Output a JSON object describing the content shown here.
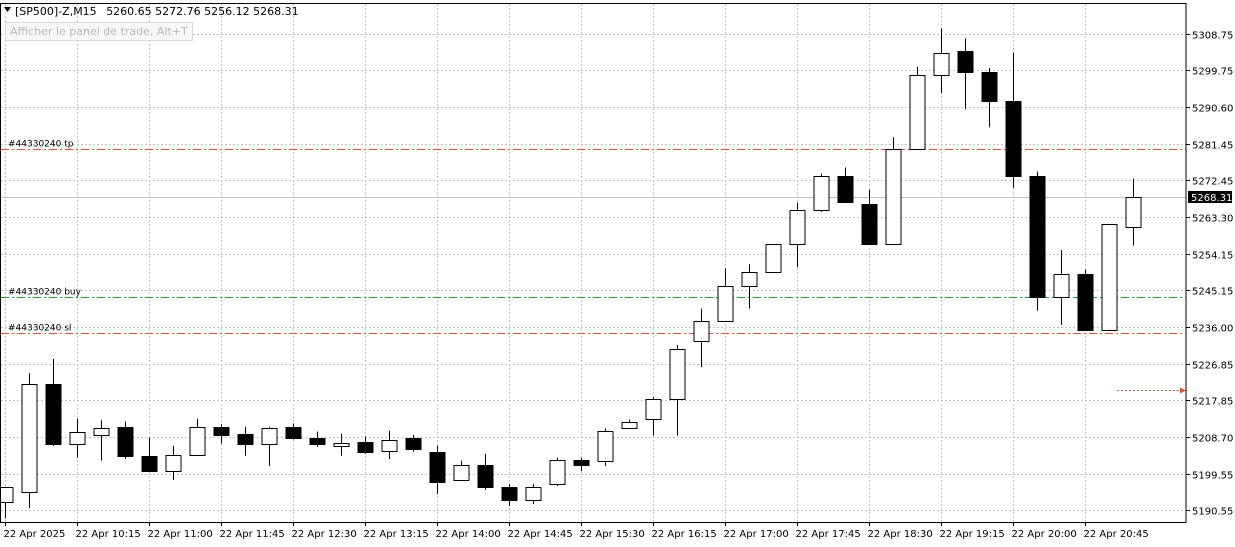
{
  "header": {
    "symbol": "[SP500]-Z,M15",
    "ohlc": "5260.65 5272.76 5256.12 5268.31",
    "trade_panel_label": "Afficher le panel de trade, Alt+T"
  },
  "chart_data": {
    "type": "candlestick",
    "ylim": [
      5186.0,
      5316.0
    ],
    "y_ticks": [
      "5308.75",
      "5299.75",
      "5290.60",
      "5281.45",
      "5272.45",
      "5263.30",
      "5254.15",
      "5245.15",
      "5236.00",
      "5226.85",
      "5217.85",
      "5208.70",
      "5199.55",
      "5190.55"
    ],
    "x_ticks": [
      "22 Apr 2025",
      "22 Apr 10:15",
      "22 Apr 11:00",
      "22 Apr 11:45",
      "22 Apr 12:30",
      "22 Apr 13:15",
      "22 Apr 14:00",
      "22 Apr 14:45",
      "22 Apr 15:30",
      "22 Apr 16:15",
      "22 Apr 17:00",
      "22 Apr 17:45",
      "22 Apr 18:30",
      "22 Apr 19:15",
      "22 Apr 20:00",
      "22 Apr 20:45"
    ],
    "current_price": "5268.31",
    "current_price_value": 5268.31,
    "candles": [
      {
        "o": 5192.5,
        "h": 5196.0,
        "l": 5188.5,
        "c": 5196.2
      },
      {
        "o": 5195.0,
        "h": 5224.5,
        "l": 5191.0,
        "c": 5221.8
      },
      {
        "o": 5221.8,
        "h": 5228.0,
        "l": 5206.5,
        "c": 5207.0
      },
      {
        "o": 5206.8,
        "h": 5213.2,
        "l": 5203.5,
        "c": 5209.8
      },
      {
        "o": 5209.2,
        "h": 5212.8,
        "l": 5202.8,
        "c": 5210.8
      },
      {
        "o": 5211.2,
        "h": 5212.5,
        "l": 5203.2,
        "c": 5204.0
      },
      {
        "o": 5204.0,
        "h": 5208.5,
        "l": 5200.0,
        "c": 5200.2
      },
      {
        "o": 5200.2,
        "h": 5206.5,
        "l": 5198.0,
        "c": 5204.2
      },
      {
        "o": 5204.2,
        "h": 5213.2,
        "l": 5204.2,
        "c": 5211.2
      },
      {
        "o": 5211.2,
        "h": 5211.8,
        "l": 5207.0,
        "c": 5209.2
      },
      {
        "o": 5209.5,
        "h": 5211.2,
        "l": 5204.0,
        "c": 5206.8
      },
      {
        "o": 5206.8,
        "h": 5211.2,
        "l": 5201.5,
        "c": 5210.8
      },
      {
        "o": 5211.2,
        "h": 5212.0,
        "l": 5208.0,
        "c": 5208.5
      },
      {
        "o": 5208.5,
        "h": 5210.0,
        "l": 5206.2,
        "c": 5206.8
      },
      {
        "o": 5206.5,
        "h": 5209.5,
        "l": 5204.0,
        "c": 5207.2
      },
      {
        "o": 5207.5,
        "h": 5208.8,
        "l": 5204.5,
        "c": 5205.0
      },
      {
        "o": 5205.2,
        "h": 5210.2,
        "l": 5203.2,
        "c": 5208.0
      },
      {
        "o": 5208.5,
        "h": 5209.2,
        "l": 5205.0,
        "c": 5205.8
      },
      {
        "o": 5205.0,
        "h": 5206.5,
        "l": 5194.5,
        "c": 5197.5
      },
      {
        "o": 5198.0,
        "h": 5202.8,
        "l": 5198.0,
        "c": 5201.8
      },
      {
        "o": 5201.8,
        "h": 5204.5,
        "l": 5195.5,
        "c": 5196.2
      },
      {
        "o": 5196.2,
        "h": 5197.0,
        "l": 5191.5,
        "c": 5193.0
      },
      {
        "o": 5193.0,
        "h": 5197.0,
        "l": 5192.0,
        "c": 5196.2
      },
      {
        "o": 5197.0,
        "h": 5203.5,
        "l": 5196.5,
        "c": 5203.0
      },
      {
        "o": 5203.0,
        "h": 5203.5,
        "l": 5200.2,
        "c": 5201.8
      },
      {
        "o": 5202.8,
        "h": 5210.8,
        "l": 5201.5,
        "c": 5210.2
      },
      {
        "o": 5210.8,
        "h": 5213.0,
        "l": 5210.8,
        "c": 5212.5
      },
      {
        "o": 5213.2,
        "h": 5218.5,
        "l": 5209.0,
        "c": 5218.0
      },
      {
        "o": 5218.0,
        "h": 5231.5,
        "l": 5209.0,
        "c": 5230.5
      },
      {
        "o": 5232.5,
        "h": 5240.5,
        "l": 5226.0,
        "c": 5237.5
      },
      {
        "o": 5237.5,
        "h": 5250.5,
        "l": 5237.5,
        "c": 5246.0
      },
      {
        "o": 5246.0,
        "h": 5251.5,
        "l": 5240.5,
        "c": 5249.5
      },
      {
        "o": 5249.5,
        "h": 5256.5,
        "l": 5249.5,
        "c": 5256.5
      },
      {
        "o": 5256.5,
        "h": 5266.8,
        "l": 5250.8,
        "c": 5265.0
      },
      {
        "o": 5265.0,
        "h": 5274.0,
        "l": 5264.5,
        "c": 5273.5
      },
      {
        "o": 5273.5,
        "h": 5275.5,
        "l": 5267.0,
        "c": 5267.0
      },
      {
        "o": 5266.5,
        "h": 5270.0,
        "l": 5256.5,
        "c": 5256.5
      },
      {
        "o": 5256.5,
        "h": 5283.0,
        "l": 5256.5,
        "c": 5280.0
      },
      {
        "o": 5280.0,
        "h": 5300.5,
        "l": 5280.0,
        "c": 5298.5
      },
      {
        "o": 5298.5,
        "h": 5310.0,
        "l": 5294.0,
        "c": 5304.0
      },
      {
        "o": 5304.5,
        "h": 5307.5,
        "l": 5290.0,
        "c": 5299.2
      },
      {
        "o": 5299.2,
        "h": 5300.2,
        "l": 5285.5,
        "c": 5292.0
      },
      {
        "o": 5292.0,
        "h": 5304.0,
        "l": 5270.5,
        "c": 5273.5
      },
      {
        "o": 5273.5,
        "h": 5274.5,
        "l": 5240.0,
        "c": 5243.5
      },
      {
        "o": 5243.5,
        "h": 5255.0,
        "l": 5236.5,
        "c": 5249.2
      },
      {
        "o": 5249.2,
        "h": 5250.2,
        "l": 5235.0,
        "c": 5235.2
      },
      {
        "o": 5235.2,
        "h": 5261.5,
        "l": 5235.2,
        "c": 5261.5
      },
      {
        "o": 5260.65,
        "h": 5272.76,
        "l": 5256.12,
        "c": 5268.31
      }
    ],
    "levels": [
      {
        "label": "#44330240 tp",
        "value": 5280.0,
        "color": "#e0563a"
      },
      {
        "label": "#44330240 buy",
        "value": 5243.4,
        "color": "#1e9e3e"
      },
      {
        "label": "#44330240 sl",
        "value": 5234.5,
        "color": "#e0563a"
      }
    ],
    "arrow_marker_value": 5220.4,
    "colors": {
      "bull_fill": "#ffffff",
      "bear_fill": "#000000",
      "grid": "#c4c4c4",
      "price_line": "#c0c0c0"
    }
  }
}
